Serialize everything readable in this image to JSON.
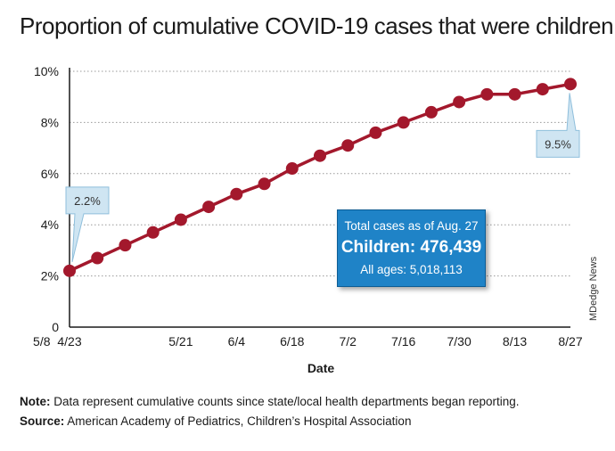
{
  "title": "Proportion of cumulative COVID-19 cases that were children",
  "note": {
    "label": "Note:",
    "text": " Data represent cumulative counts since state/local health departments began reporting."
  },
  "source": {
    "label": "Source:",
    "text": " American Academy of Pediatrics, Children’s Hospital Association"
  },
  "credit": "MDedge News",
  "infobox": {
    "line1": "Total cases as of Aug. 27",
    "line2": "Children: 476,439",
    "line3": "All ages: 5,018,113"
  },
  "colors": {
    "line": "#a3182c",
    "axis": "#1a1a1a",
    "grid": "#999999",
    "callout_fill": "#cfe5f2",
    "callout_stroke": "#8fbfdc",
    "infobox": "#1f83c7"
  },
  "chart_data": {
    "type": "line",
    "xlabel": "Date",
    "ylabel": "",
    "ylim": [
      0,
      10
    ],
    "yticks": [
      0,
      2,
      4,
      6,
      8,
      10
    ],
    "ytick_labels": [
      "0",
      "2%",
      "4%",
      "6%",
      "8%",
      "10%"
    ],
    "xtick_labels": [
      "4/23",
      "5/8",
      "5/21",
      "6/4",
      "6/18",
      "7/2",
      "7/16",
      "7/30",
      "8/13",
      "8/27"
    ],
    "x": [
      "4/23",
      "4/30",
      "5/7",
      "5/14",
      "5/21",
      "5/28",
      "6/4",
      "6/11",
      "6/18",
      "6/25",
      "7/2",
      "7/9",
      "7/16",
      "7/23",
      "7/30",
      "8/6",
      "8/13",
      "8/20",
      "8/27"
    ],
    "series": [
      {
        "values": [
          2.2,
          2.7,
          3.2,
          3.7,
          4.2,
          4.7,
          5.2,
          5.6,
          6.2,
          6.7,
          7.1,
          7.6,
          8.0,
          8.4,
          8.8,
          9.1,
          9.1,
          9.3,
          9.5
        ]
      }
    ],
    "annotations": [
      {
        "point": "4/23",
        "text": "2.2%"
      },
      {
        "point": "8/27",
        "text": "9.5%"
      }
    ]
  }
}
